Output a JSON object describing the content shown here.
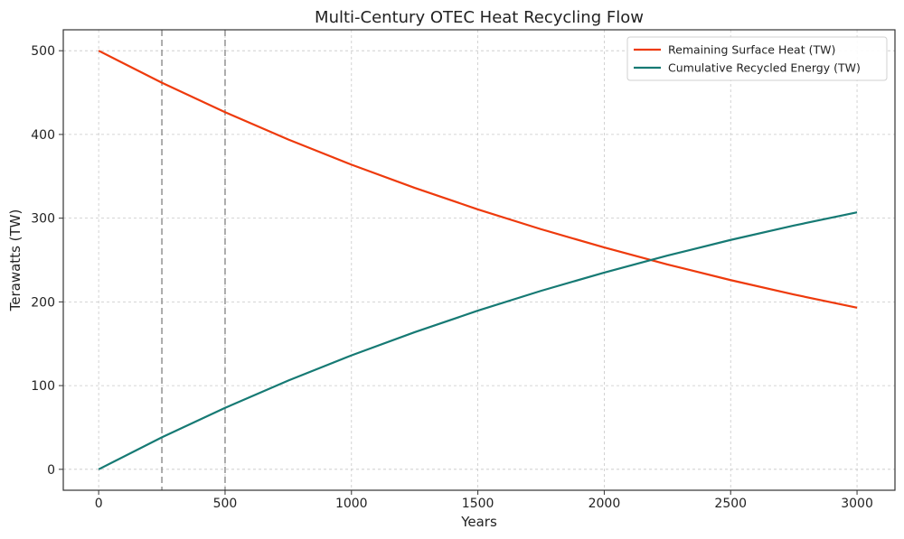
{
  "chart_data": {
    "type": "line",
    "title": "Multi-Century OTEC Heat Recycling Flow",
    "xlabel": "Years",
    "ylabel": "Terawatts (TW)",
    "xlim": [
      -140,
      3150
    ],
    "ylim": [
      -25,
      525
    ],
    "xticks": [
      0,
      500,
      1000,
      1500,
      2000,
      2500,
      3000
    ],
    "yticks": [
      0,
      100,
      200,
      300,
      400,
      500
    ],
    "grid": true,
    "legend_position": "top-right",
    "vlines": [
      250,
      500
    ],
    "x": [
      0,
      250,
      500,
      750,
      1000,
      1250,
      1500,
      1750,
      2000,
      2250,
      2500,
      2750,
      3000
    ],
    "series": [
      {
        "name": "Remaining Surface Heat (TW)",
        "color": "#ee3a0c",
        "values": [
          500,
          461.8,
          426.6,
          394.0,
          363.9,
          336.2,
          310.5,
          286.8,
          265.0,
          244.7,
          226.0,
          208.8,
          193.0
        ]
      },
      {
        "name": "Cumulative Recycled Energy (TW)",
        "color": "#167a74",
        "values": [
          0,
          38.2,
          73.4,
          106.0,
          136.1,
          163.8,
          189.5,
          213.2,
          235.0,
          255.3,
          274.0,
          291.2,
          307.0
        ]
      }
    ]
  }
}
